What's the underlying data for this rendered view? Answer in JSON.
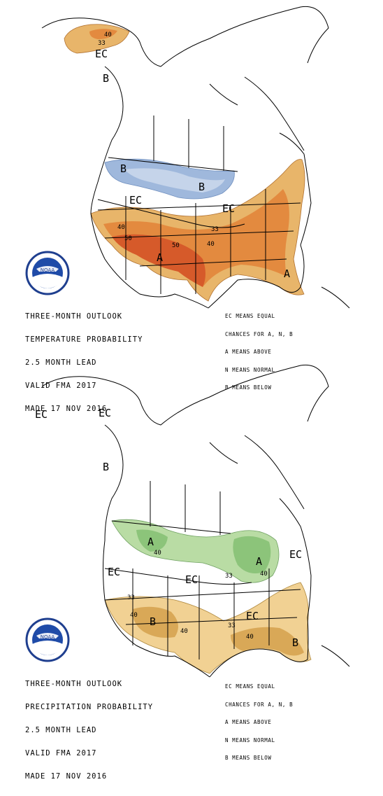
{
  "temperature": {
    "title_lines": [
      "THREE-MONTH OUTLOOK",
      "TEMPERATURE PROBABILITY",
      "2.5 MONTH LEAD",
      "VALID FMA 2017",
      "MADE 17 NOV 2016"
    ],
    "legend_lines": [
      "EC MEANS EQUAL",
      "CHANCES FOR A, N, B",
      "A MEANS ABOVE",
      "N MEANS NORMAL",
      "B MEANS BELOW"
    ],
    "labels": {
      "ec_alaska": "EC",
      "b_alaska": "B",
      "b_west": "B",
      "b_central": "B",
      "ec_west": "EC",
      "ec_central": "EC",
      "a_southwest": "A",
      "a_florida": "A",
      "c33_alaska": "33",
      "c40_alaska": "40",
      "c33": "33",
      "c40": "40",
      "c50_west": "50",
      "c50_east": "50",
      "c40_east": "40"
    },
    "colors": {
      "above_33": "#e8b56a",
      "above_40": "#e38a3f",
      "above_50": "#d65a2a",
      "below_33": "#9fb8dc",
      "below_light": "#c5d4ea"
    }
  },
  "precipitation": {
    "title_lines": [
      "THREE-MONTH OUTLOOK",
      "PRECIPITATION PROBABILITY",
      "2.5 MONTH LEAD",
      "VALID FMA 2017",
      "MADE 17 NOV 2016"
    ],
    "legend_lines": [
      "EC MEANS EQUAL",
      "CHANCES FOR A, N, B",
      "A MEANS ABOVE",
      "N MEANS NORMAL",
      "B MEANS BELOW"
    ],
    "labels": {
      "ec_alaska_w": "EC",
      "ec_alaska": "EC",
      "b_alaska": "B",
      "a_west": "A",
      "a_greatlakes": "A",
      "ec_pacific": "EC",
      "ec_central": "EC",
      "ec_east": "EC",
      "ec_southeast": "EC",
      "b_southwest": "B",
      "b_florida": "B",
      "c40_w": "40",
      "c33_gl": "33",
      "c40_gl": "40",
      "c33_sw": "33",
      "c40_sw": "40",
      "c33_se": "33",
      "c40_se": "40"
    },
    "colors": {
      "wet_33": "#b9dca4",
      "wet_40": "#8cc47a",
      "dry_33": "#f1d193",
      "dry_40": "#d9a857"
    }
  },
  "logo": {
    "name": "NOAA"
  }
}
